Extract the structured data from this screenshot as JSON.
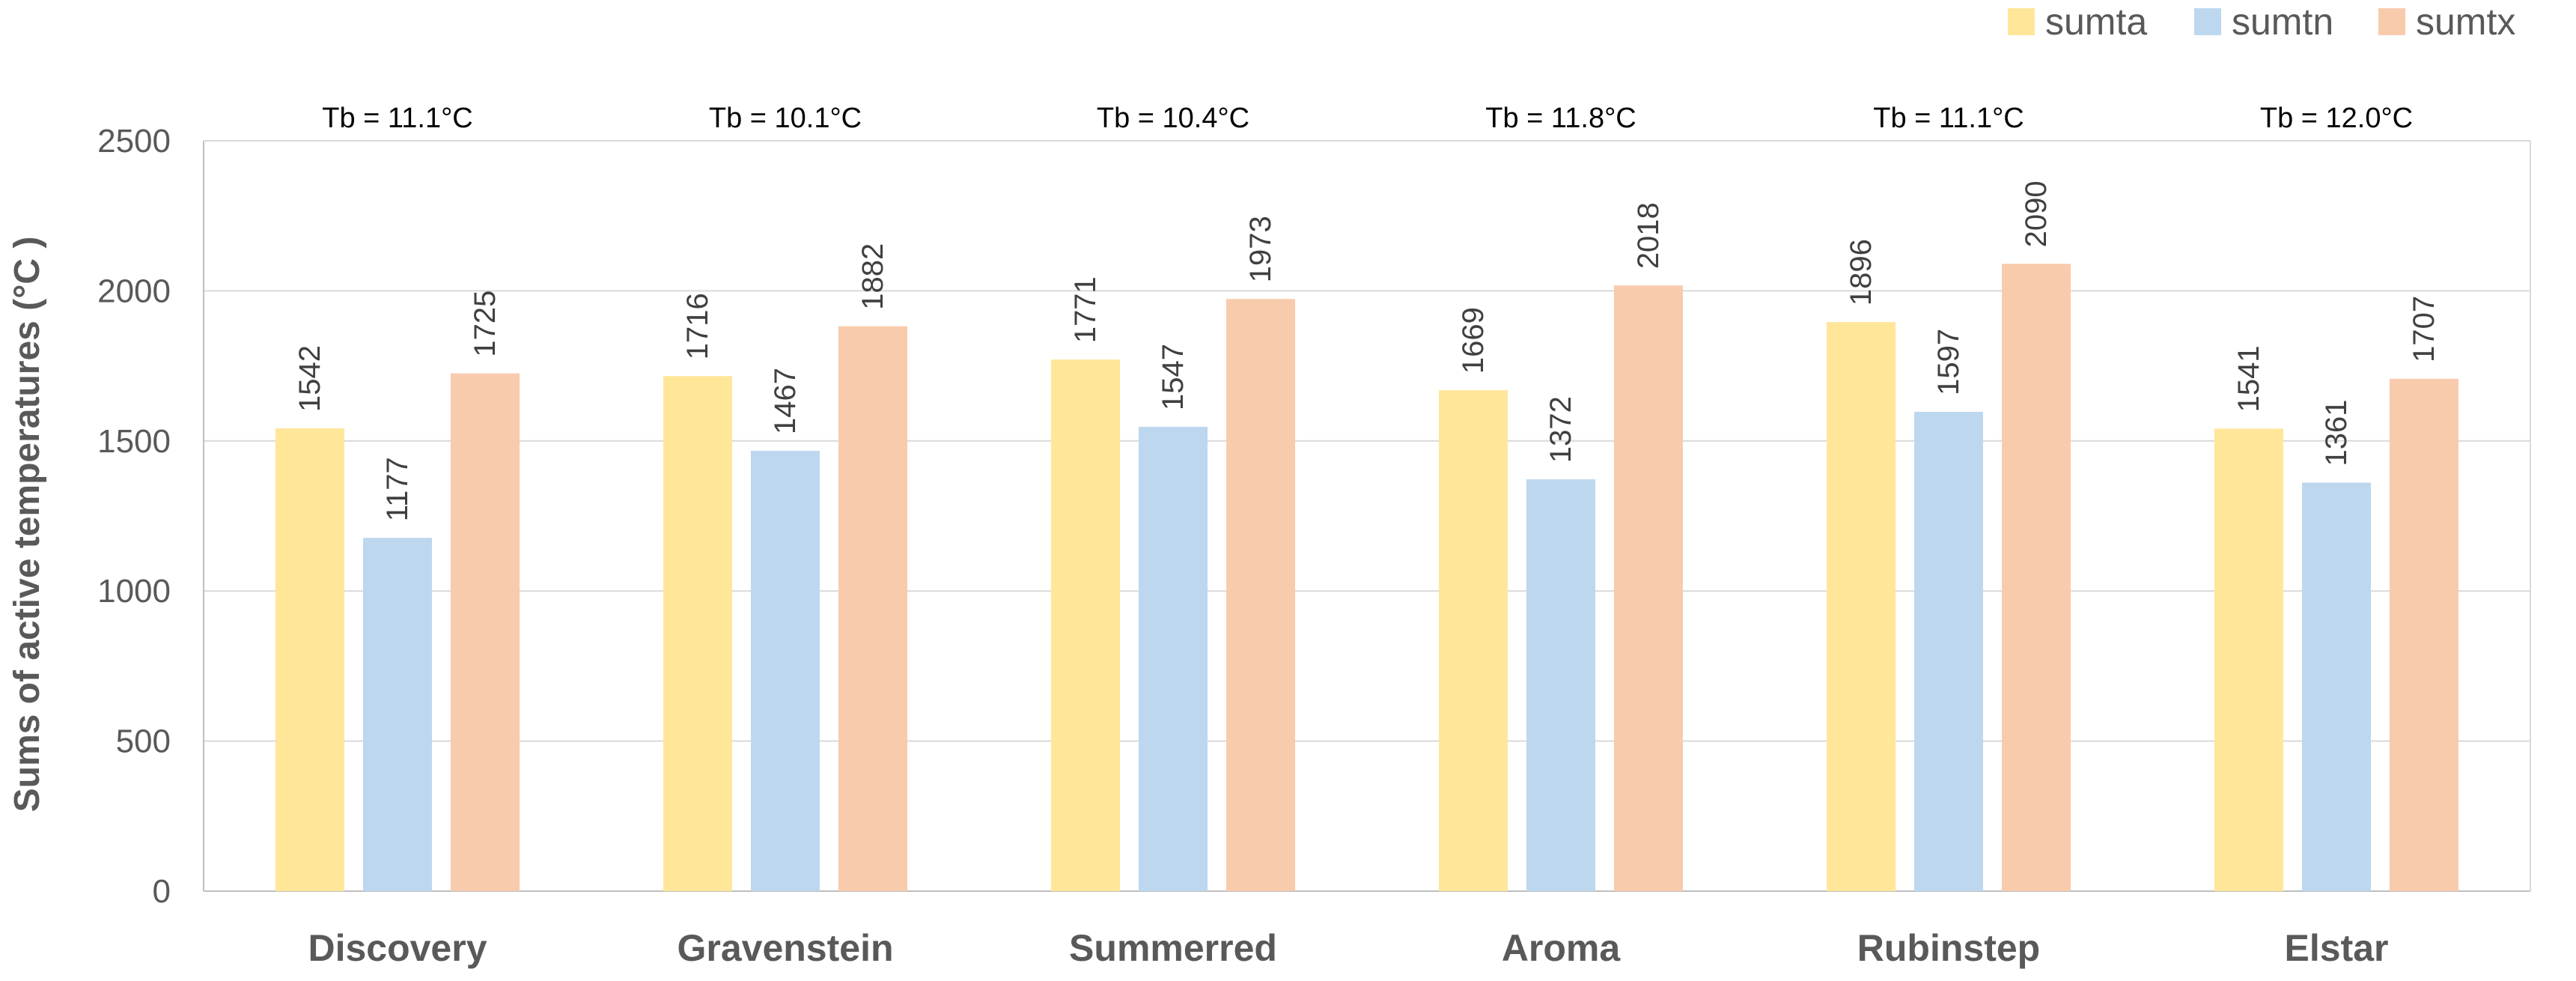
{
  "chart_data": {
    "type": "bar",
    "title": "",
    "xlabel": "",
    "ylabel": "Sums of active temperatures (°C )",
    "ylim": [
      0,
      2500
    ],
    "yticks": [
      0,
      500,
      1000,
      1500,
      2000,
      2500
    ],
    "grid": true,
    "legend_position": "top-right",
    "categories": [
      "Discovery",
      "Gravenstein",
      "Summerred",
      "Aroma",
      "Rubinstep",
      "Elstar"
    ],
    "annotations": [
      "Tb = 11.1°C",
      "Tb = 10.1°C",
      "Tb = 10.4°C",
      "Tb = 11.8°C",
      "Tb = 11.1°C",
      "Tb = 12.0°C"
    ],
    "series": [
      {
        "name": "sumta",
        "color": "#FFE699",
        "values": [
          1542,
          1716,
          1771,
          1669,
          1896,
          1541
        ]
      },
      {
        "name": "sumtn",
        "color": "#BDD7EE",
        "values": [
          1177,
          1467,
          1547,
          1372,
          1597,
          1361
        ]
      },
      {
        "name": "sumtx",
        "color": "#F8CBAD",
        "values": [
          1725,
          1882,
          1973,
          2018,
          2090,
          1707
        ]
      }
    ]
  }
}
